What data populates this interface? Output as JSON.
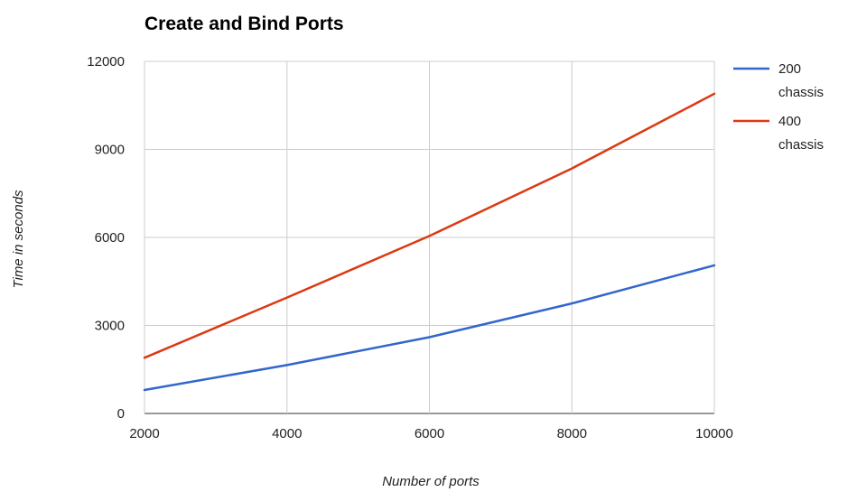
{
  "chart_data": {
    "type": "line",
    "title": "Create and Bind Ports",
    "xlabel": "Number of ports",
    "ylabel": "Time in seconds",
    "x": [
      2000,
      4000,
      6000,
      8000,
      10000
    ],
    "x_ticks": [
      "2000",
      "4000",
      "6000",
      "8000",
      "10000"
    ],
    "y_ticks": [
      "0",
      "3000",
      "6000",
      "9000",
      "12000"
    ],
    "xlim": [
      2000,
      10000
    ],
    "ylim": [
      0,
      12000
    ],
    "grid": true,
    "legend_position": "right",
    "series": [
      {
        "name": "200 chassis",
        "legend_lines": [
          "200",
          "chassis"
        ],
        "color": "#3366cc",
        "values": [
          800,
          1650,
          2600,
          3750,
          5050
        ]
      },
      {
        "name": "400 chassis",
        "legend_lines": [
          "400",
          "chassis"
        ],
        "color": "#dc3912",
        "values": [
          1900,
          3950,
          6050,
          8350,
          10900
        ]
      }
    ]
  }
}
